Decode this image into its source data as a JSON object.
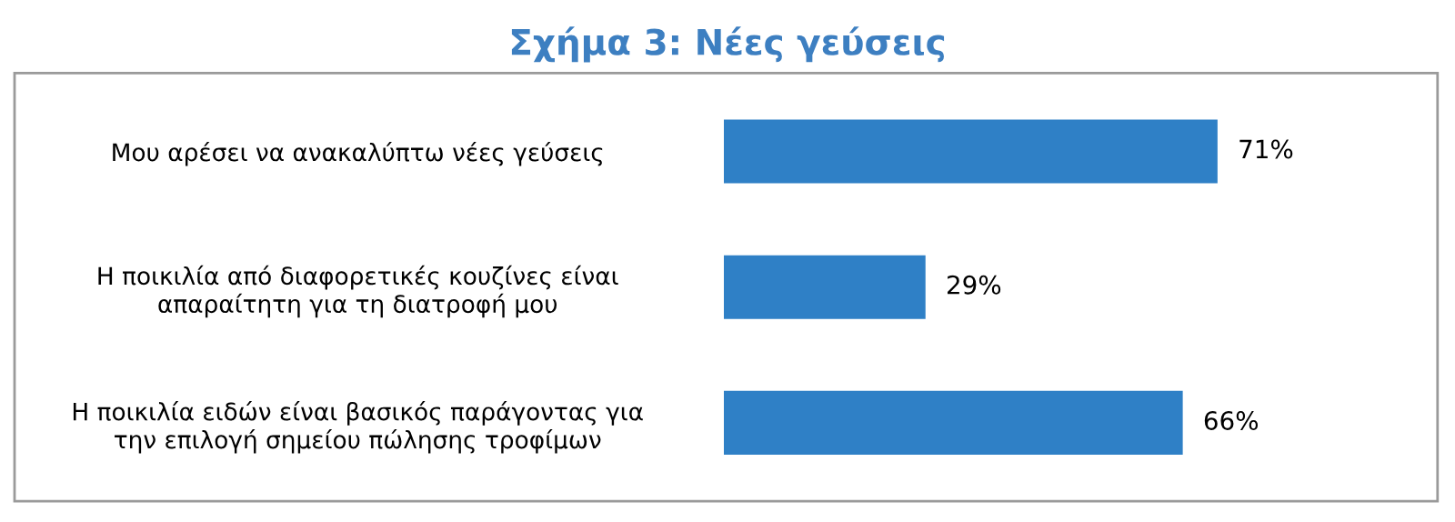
{
  "chart_data": {
    "type": "bar",
    "orientation": "horizontal",
    "title": "Σχήμα 3: Νέες γεύσεις",
    "categories": [
      "Μου αρέσει να ανακαλύπτω νέες γεύσεις",
      "Η ποικιλία από διαφορετικές κουζίνες είναι\nαπαραίτητη για τη διατροφή μου",
      "Η ποικιλία ειδών είναι βασικός παράγοντας για\nτην επιλογή σημείου πώλησης τροφίμων"
    ],
    "values": [
      71,
      29,
      66
    ],
    "value_labels": [
      "71%",
      "29%",
      "66%"
    ],
    "color": "#2f80c6",
    "grid": false,
    "legend": false
  }
}
